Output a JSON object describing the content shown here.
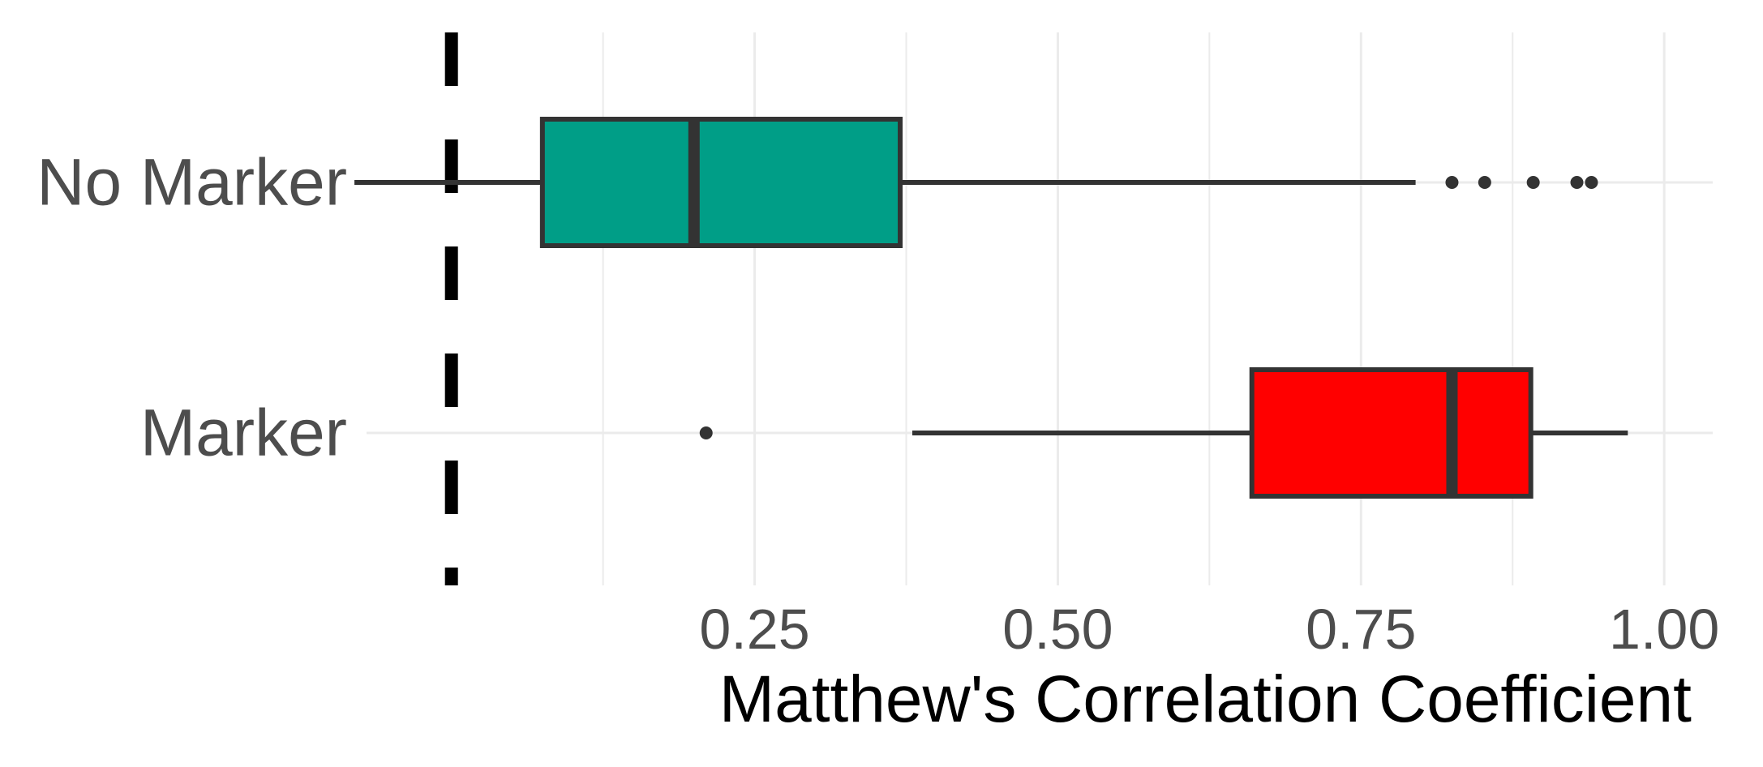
{
  "chart_data": {
    "type": "boxplot",
    "orientation": "horizontal",
    "xlabel": "Matthew's Correlation Coefficient",
    "ylabel": "",
    "xlim": [
      -0.07,
      1.04
    ],
    "x_ticks": [
      0.25,
      0.5,
      0.75,
      1.0
    ],
    "x_tick_labels": [
      "0.25",
      "0.50",
      "0.75",
      "1.00"
    ],
    "x_minor_gridlines": [
      0.125,
      0.375,
      0.625,
      0.875
    ],
    "grid": true,
    "legend": "none",
    "reference_line": {
      "x": 0.0,
      "style": "dashed",
      "color": "#000000"
    },
    "categories": [
      "No Marker",
      "Marker"
    ],
    "series": [
      {
        "category": "No Marker",
        "color": "#009E87",
        "whisker_low": -0.08,
        "q1": 0.075,
        "median": 0.2,
        "q3": 0.37,
        "whisker_high": 0.795,
        "outliers": [
          0.825,
          0.852,
          0.892,
          0.928,
          0.94
        ]
      },
      {
        "category": "Marker",
        "color": "#FF0000",
        "whisker_low": 0.38,
        "q1": 0.66,
        "median": 0.825,
        "q3": 0.89,
        "whisker_high": 0.97,
        "outliers": [
          0.21
        ]
      }
    ]
  }
}
